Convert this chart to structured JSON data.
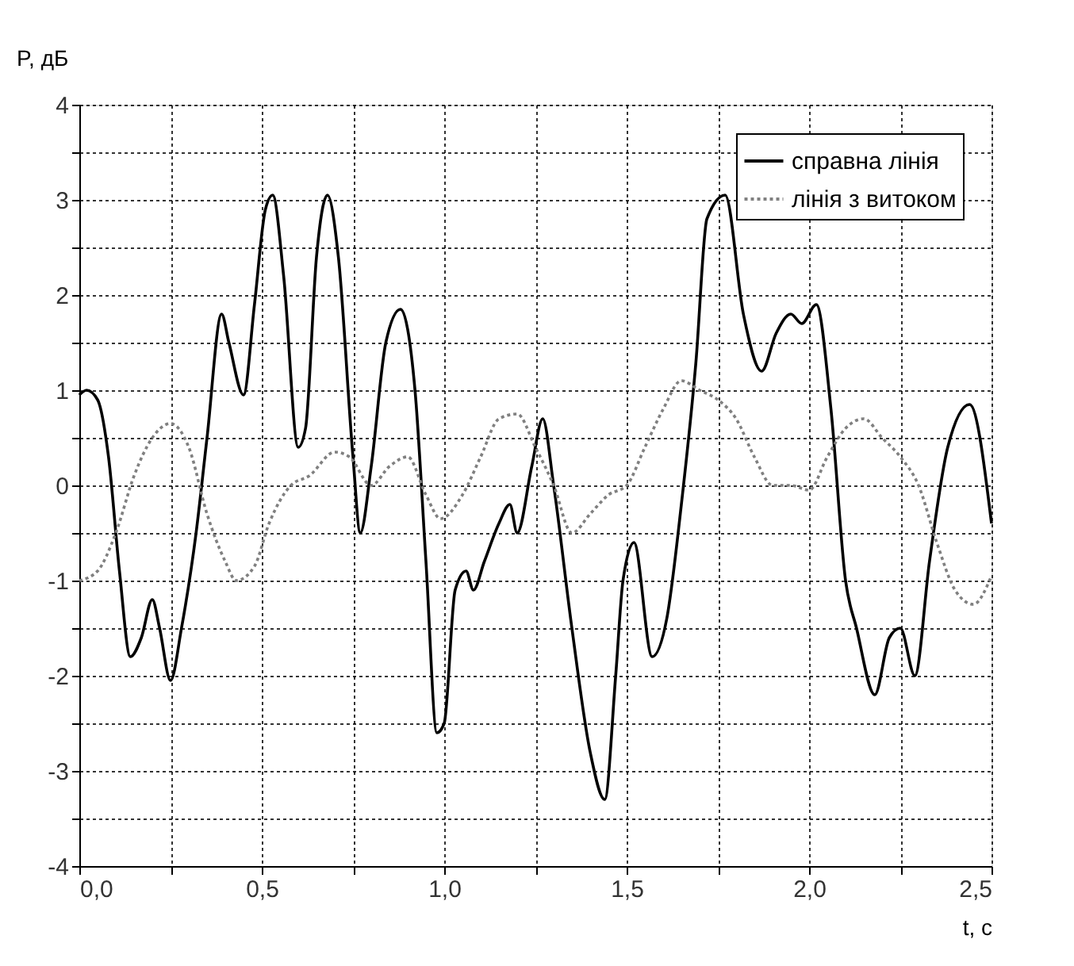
{
  "chart_data": {
    "type": "line",
    "xlabel": "t, c",
    "ylabel": "P, дБ",
    "xlim": [
      0,
      2.5
    ],
    "ylim": [
      -4,
      4
    ],
    "xticks": [
      {
        "value": 0,
        "label": "0,0"
      },
      {
        "value": 0.25,
        "label": null
      },
      {
        "value": 0.5,
        "label": "0,5"
      },
      {
        "value": 0.75,
        "label": null
      },
      {
        "value": 1,
        "label": "1,0"
      },
      {
        "value": 1.25,
        "label": null
      },
      {
        "value": 1.5,
        "label": "1,5"
      },
      {
        "value": 1.75,
        "label": null
      },
      {
        "value": 2,
        "label": "2,0"
      },
      {
        "value": 2.25,
        "label": null
      },
      {
        "value": 2.5,
        "label": "2,5"
      }
    ],
    "yticks": [
      -4,
      {
        "value": -3.5,
        "label": null
      },
      -3,
      {
        "value": -2.5,
        "label": null
      },
      -2,
      {
        "value": -1.5,
        "label": null
      },
      -1,
      {
        "value": -0.5,
        "label": null
      },
      0,
      {
        "value": 0.5,
        "label": null
      },
      1,
      {
        "value": 1.5,
        "label": null
      },
      2,
      {
        "value": 2.5,
        "label": null
      },
      3,
      {
        "value": 3.5,
        "label": null
      },
      4
    ],
    "grid": true,
    "legend": "top right",
    "marker": "none",
    "series": [
      {
        "name": "справна лінія",
        "color": "#000000",
        "line_style": "solid",
        "x": [
          0,
          0.02,
          0.05,
          0.08,
          0.11,
          0.14,
          0.17,
          0.2,
          0.22,
          0.25,
          0.28,
          0.32,
          0.35,
          0.39,
          0.41,
          0.45,
          0.48,
          0.51,
          0.53,
          0.56,
          0.6,
          0.62,
          0.65,
          0.68,
          0.71,
          0.75,
          0.77,
          0.8,
          0.84,
          0.88,
          0.92,
          0.95,
          0.98,
          1.0,
          1.03,
          1.06,
          1.08,
          1.11,
          1.15,
          1.18,
          1.2,
          1.24,
          1.27,
          1.3,
          1.35,
          1.4,
          1.44,
          1.47,
          1.49,
          1.52,
          1.57,
          1.61,
          1.65,
          1.69,
          1.72,
          1.77,
          1.82,
          1.87,
          1.91,
          1.95,
          1.98,
          2.02,
          2.06,
          2.1,
          2.13,
          2.18,
          2.22,
          2.25,
          2.29,
          2.33,
          2.38,
          2.44,
          2.5
        ],
        "values": [
          0.95,
          1.0,
          0.9,
          0.3,
          -0.9,
          -1.8,
          -1.6,
          -1.2,
          -1.5,
          -2.05,
          -1.5,
          -0.5,
          0.5,
          1.8,
          1.5,
          0.95,
          1.9,
          2.9,
          3.05,
          2.2,
          0.4,
          0.6,
          2.4,
          3.05,
          2.4,
          0.3,
          -0.5,
          0.2,
          1.5,
          1.85,
          1.0,
          -0.8,
          -2.6,
          -2.5,
          -1.1,
          -0.9,
          -1.1,
          -0.8,
          -0.4,
          -0.2,
          -0.5,
          0.2,
          0.7,
          0.0,
          -1.5,
          -2.8,
          -3.3,
          -2.0,
          -1.0,
          -0.6,
          -1.8,
          -1.4,
          -0.2,
          1.3,
          2.8,
          3.05,
          1.8,
          1.2,
          1.6,
          1.8,
          1.7,
          1.9,
          0.8,
          -1.0,
          -1.5,
          -2.2,
          -1.6,
          -1.5,
          -2.0,
          -0.8,
          0.4,
          0.85,
          -0.4
        ]
      },
      {
        "name": "лінія з витоком",
        "color": "#808080",
        "line_style": "dotted",
        "x": [
          0,
          0.05,
          0.1,
          0.15,
          0.2,
          0.25,
          0.3,
          0.35,
          0.4,
          0.43,
          0.48,
          0.52,
          0.58,
          0.63,
          0.7,
          0.74,
          0.8,
          0.85,
          0.9,
          0.95,
          0.99,
          1.05,
          1.1,
          1.15,
          1.2,
          1.25,
          1.3,
          1.35,
          1.4,
          1.45,
          1.5,
          1.55,
          1.6,
          1.65,
          1.7,
          1.75,
          1.8,
          1.85,
          1.9,
          1.95,
          2.0,
          2.05,
          2.1,
          2.15,
          2.2,
          2.25,
          2.3,
          2.35,
          2.4,
          2.45,
          2.5
        ],
        "values": [
          -1.0,
          -0.9,
          -0.5,
          0.1,
          0.5,
          0.65,
          0.4,
          -0.3,
          -0.8,
          -1.0,
          -0.85,
          -0.4,
          0.0,
          0.1,
          0.35,
          0.3,
          0.0,
          0.2,
          0.3,
          -0.1,
          -0.35,
          -0.1,
          0.3,
          0.7,
          0.75,
          0.4,
          0.0,
          -0.5,
          -0.3,
          -0.1,
          0.0,
          0.4,
          0.8,
          1.1,
          1.0,
          0.9,
          0.7,
          0.3,
          0.0,
          0.0,
          -0.05,
          0.3,
          0.6,
          0.7,
          0.5,
          0.3,
          0.0,
          -0.6,
          -1.1,
          -1.25,
          -0.95
        ]
      }
    ]
  }
}
